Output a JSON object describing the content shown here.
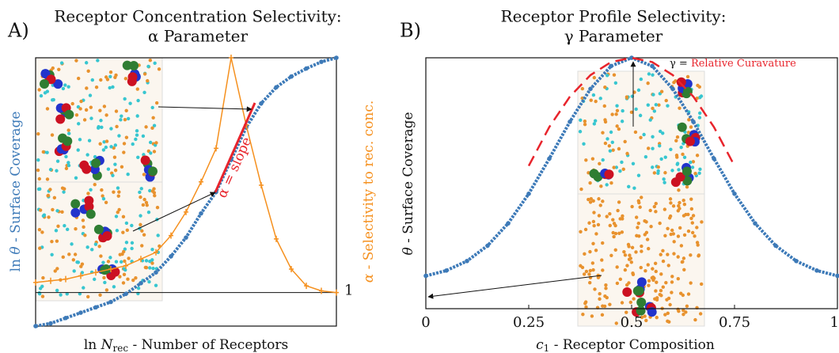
{
  "chart_data": [
    {
      "type": "line",
      "panel": "A)",
      "title": [
        "Receptor Concentration Selectivity:",
        "α Parameter"
      ],
      "xlabel": [
        "ln ",
        "N",
        "rec",
        " - Number of Receptors"
      ],
      "ylabel": [
        "ln ",
        "θ",
        " - Surface Coverage"
      ],
      "y2label": [
        "α",
        " - Selectivity to rec. conc."
      ],
      "annotation": [
        "α = slope"
      ],
      "x": [
        0,
        0.05,
        0.1,
        0.15,
        0.2,
        0.25,
        0.3,
        0.35,
        0.4,
        0.45,
        0.5,
        0.55,
        0.6,
        0.65,
        0.7,
        0.75,
        0.8,
        0.85,
        0.9,
        0.95,
        1
      ],
      "xlim": [
        0,
        1
      ],
      "ylim": [
        0,
        1
      ],
      "y2lim": [
        0,
        8
      ],
      "y2ticks": [
        1
      ],
      "series": [
        {
          "color": "#3d7ab8",
          "style": "markers",
          "values": [
            0,
            0.01,
            0.03,
            0.05,
            0.07,
            0.09,
            0.12,
            0.16,
            0.2,
            0.26,
            0.33,
            0.42,
            0.5,
            0.62,
            0.74,
            0.83,
            0.89,
            0.93,
            0.96,
            0.985,
            1
          ]
        },
        {
          "color": "#f5901e",
          "style": "line",
          "axis": "y2",
          "values": [
            1.3,
            1.35,
            1.4,
            1.5,
            1.6,
            1.7,
            1.8,
            2.0,
            2.2,
            2.7,
            3.4,
            4.3,
            5.3,
            8.0,
            6.0,
            4.2,
            2.6,
            1.7,
            1.2,
            1.05,
            1.0
          ]
        }
      ]
    },
    {
      "type": "line",
      "panel": "B)",
      "title": [
        "Receptor Profile Selectivity:",
        "γ Parameter"
      ],
      "xlabel": [
        "c",
        "1",
        " - Receptor Composition"
      ],
      "ylabel": [
        "θ",
        " - Surface Coverage"
      ],
      "annotation": [
        "γ = ",
        "Relative Curavature"
      ],
      "x": [
        0,
        0.05,
        0.1,
        0.15,
        0.2,
        0.25,
        0.3,
        0.35,
        0.4,
        0.45,
        0.5,
        0.55,
        0.6,
        0.65,
        0.7,
        0.75,
        0.8,
        0.85,
        0.9,
        0.95,
        1
      ],
      "xlim": [
        0,
        1
      ],
      "xticks": [
        0,
        0.25,
        0.5,
        0.75,
        1
      ],
      "ylim": [
        0,
        1
      ],
      "series": [
        {
          "color": "#3d7ab8",
          "style": "markers",
          "values": [
            0.131,
            0.152,
            0.19,
            0.251,
            0.34,
            0.458,
            0.598,
            0.745,
            0.876,
            0.967,
            1,
            0.967,
            0.876,
            0.745,
            0.598,
            0.458,
            0.34,
            0.251,
            0.19,
            0.152,
            0.131
          ]
        },
        {
          "color": "#e8242c",
          "style": "dashed",
          "values": [
            null,
            null,
            null,
            null,
            null,
            0.569,
            0.724,
            0.845,
            0.931,
            0.983,
            1,
            0.983,
            0.931,
            0.845,
            0.724,
            0.569,
            null,
            null,
            null,
            null,
            null
          ]
        }
      ]
    }
  ]
}
